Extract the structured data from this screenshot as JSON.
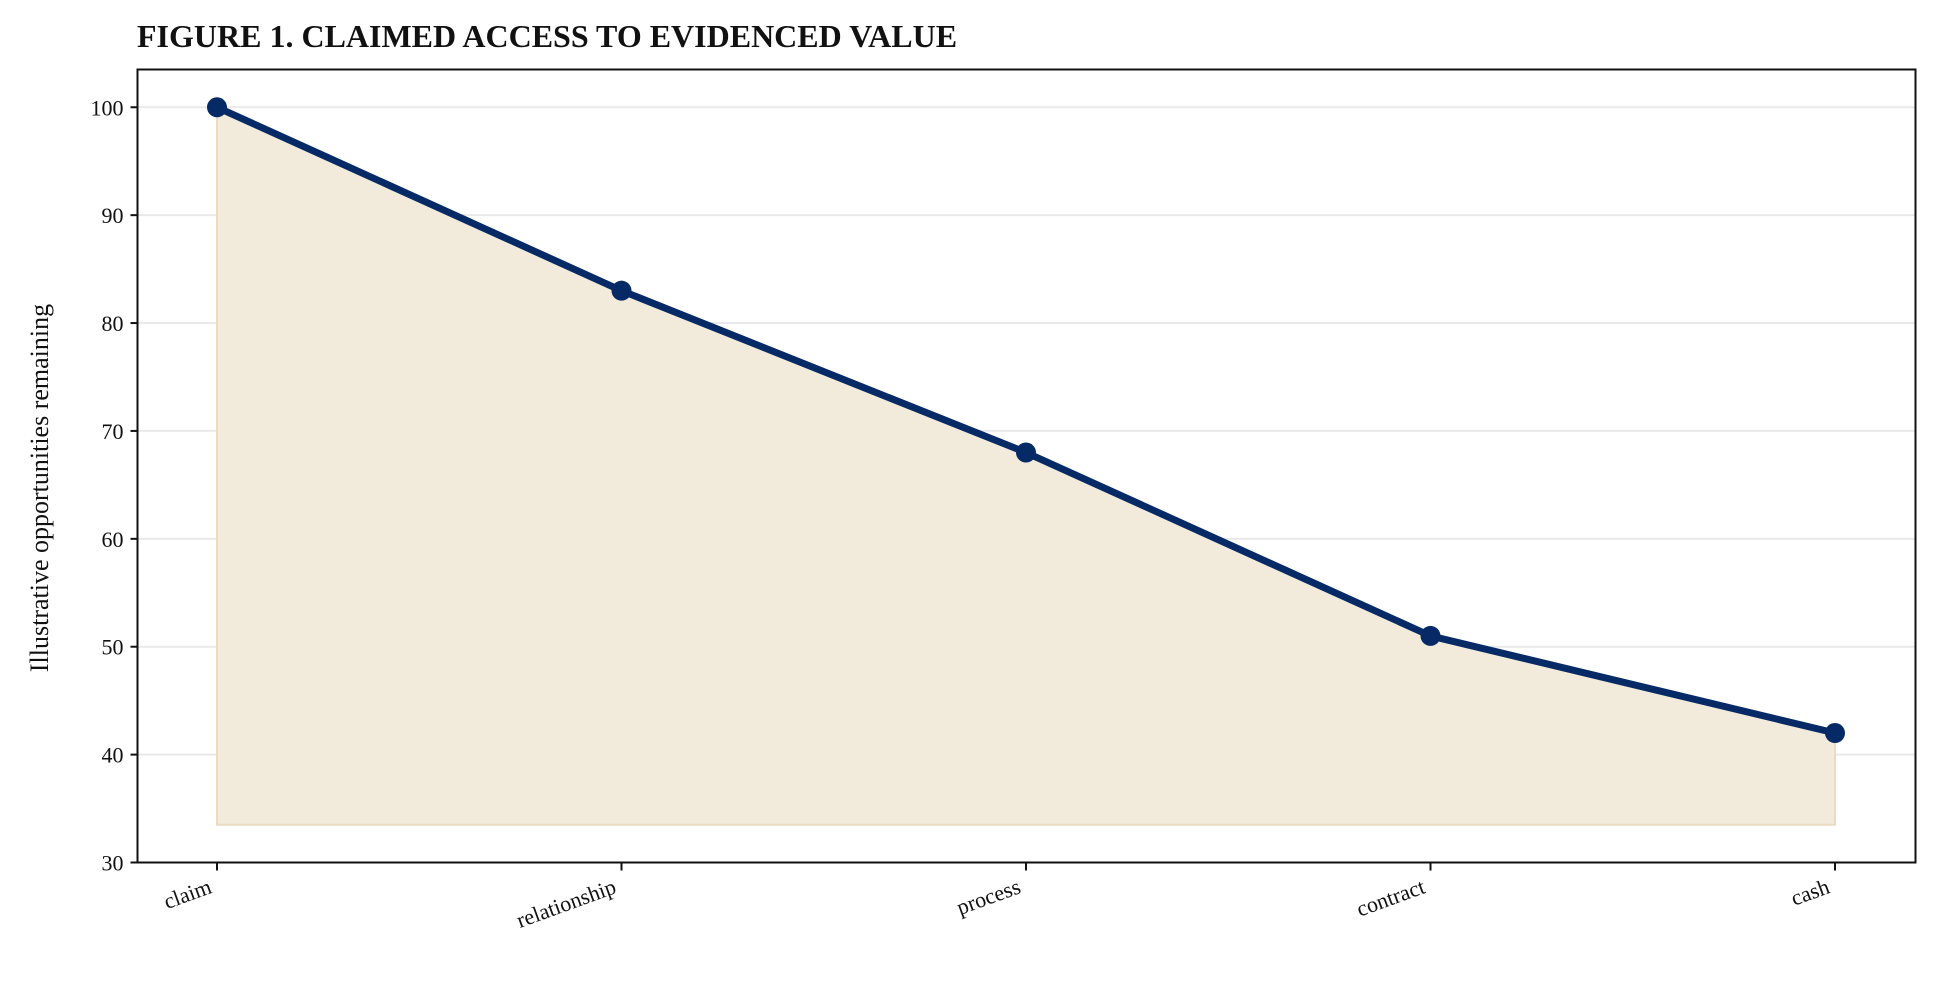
{
  "chart_data": {
    "type": "area",
    "title": "FIGURE 1. CLAIMED ACCESS TO EVIDENCED VALUE",
    "xlabel": "",
    "ylabel": "Illustrative opportunities remaining",
    "categories": [
      "claim",
      "relationship",
      "process",
      "contract",
      "cash"
    ],
    "series": [
      {
        "values": [
          100,
          83,
          68,
          51,
          42
        ]
      }
    ],
    "area_baseline": 33.5,
    "ylim": [
      30,
      103.5
    ],
    "yticks": [
      30,
      40,
      50,
      60,
      70,
      80,
      90,
      100
    ],
    "grid": "horizontal",
    "colors": {
      "line": "#062a66",
      "fill": "#f2eada",
      "fill_edge": "#eadcc0",
      "grid": "#e9e9e9",
      "axis": "#111111"
    }
  }
}
